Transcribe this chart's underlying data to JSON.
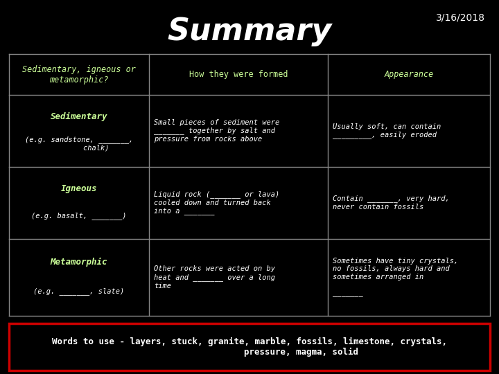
{
  "title": "Summary",
  "date": "3/16/2018",
  "bg_color": "#000000",
  "header_row": [
    "Sedimentary, igneous or\nmetamorphic?",
    "How they were formed",
    "Appearance"
  ],
  "rows": [
    {
      "col1_main": "Sedimentary",
      "col1_sub": "(e.g. sandstone, _______,\n        chalk)",
      "col2": "Small pieces of sediment were\n_______ together by salt and\npressure from rocks above",
      "col3": "Usually soft, can contain\n_________, easily eroded"
    },
    {
      "col1_main": "Igneous",
      "col1_sub": "(e.g. basalt, _______)",
      "col2": "Liquid rock (_______ or lava)\ncooled down and turned back\ninto a _______",
      "col3": "Contain _______, very hard,\nnever contain fossils"
    },
    {
      "col1_main": "Metamorphic",
      "col1_sub": "(e.g. _______, slate)",
      "col2": "Other rocks were acted on by\nheat and _______ over a long\ntime",
      "col3": "Sometimes have tiny crystals,\nno fossils, always hard and\nsometimes arranged in\n\n_______"
    }
  ],
  "header_color": "#ccff99",
  "main_rock_color": "#ccff99",
  "sub_text_color": "#ffffff",
  "body_text_color": "#ffffff",
  "grid_color": "#888888",
  "words_box_color": "#cc0000",
  "words_text_color": "#ffffff",
  "title_color": "#ffffff",
  "date_color": "#ffffff"
}
